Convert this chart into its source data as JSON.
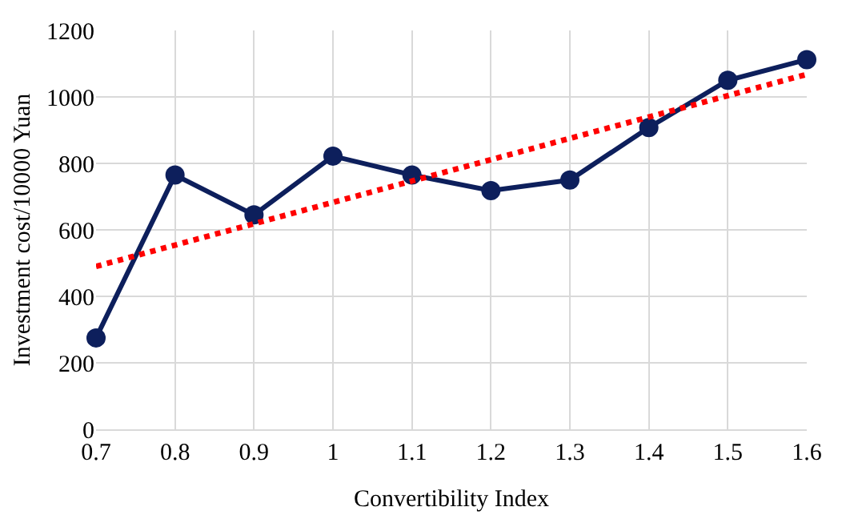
{
  "chart_data": {
    "type": "line",
    "xlabel": "Convertibility Index",
    "ylabel": "Investment cost/10000 Yuan",
    "x": [
      0.7,
      0.8,
      0.9,
      1,
      1.1,
      1.2,
      1.3,
      1.4,
      1.5,
      1.6
    ],
    "series": [
      {
        "color": "#0d1f5c",
        "values": [
          275,
          765,
          645,
          822,
          765,
          718,
          750,
          908,
          1050,
          1112
        ],
        "marker": "circle",
        "line_style": "solid"
      },
      {
        "type": "line",
        "color": "#ff0000",
        "x": [
          0.7,
          1.6
        ],
        "values": [
          490,
          1068
        ],
        "marker": "none",
        "line_style": "dotted"
      }
    ],
    "xlim": [
      0.7,
      1.6
    ],
    "xticks": [
      0.7,
      0.8,
      0.9,
      1,
      1.1,
      1.2,
      1.3,
      1.4,
      1.5,
      1.6
    ],
    "ylim": [
      0,
      1200
    ],
    "yticks": [
      0,
      200,
      400,
      600,
      800,
      1000,
      1200
    ],
    "grid": true
  }
}
